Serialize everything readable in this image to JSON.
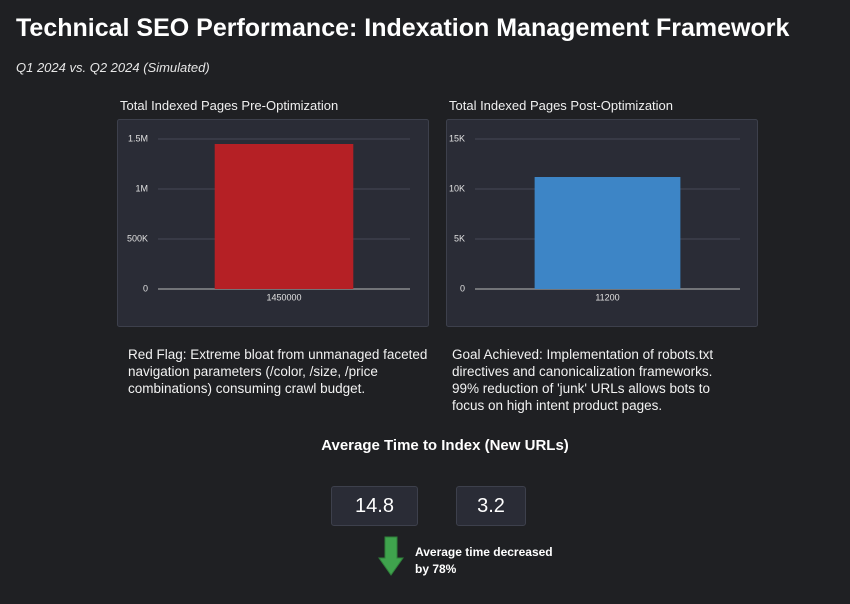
{
  "header": {
    "title": "Technical SEO Performance: Indexation Management Framework",
    "subtitle": "Q1 2024 vs. Q2 2024 (Simulated)"
  },
  "chart_data": [
    {
      "type": "bar",
      "title": "Total Indexed Pages Pre-Optimization",
      "categories": [
        "1450000"
      ],
      "values": [
        1450000
      ],
      "color": "#b52025",
      "ylim": [
        0,
        1500000
      ],
      "yticks": [
        0,
        {
          "value": 500000,
          "label": "500K"
        },
        {
          "value": 1000000,
          "label": "1M"
        },
        {
          "value": 1500000,
          "label": "1.5M"
        }
      ],
      "grid": true
    },
    {
      "type": "bar",
      "title": "Total Indexed Pages Post-Optimization",
      "categories": [
        "11200"
      ],
      "values": [
        11200
      ],
      "color": "#3d85c6",
      "ylim": [
        0,
        15000
      ],
      "yticks": [
        0,
        {
          "value": 5000,
          "label": "5K"
        },
        {
          "value": 10000,
          "label": "10K"
        },
        {
          "value": 15000,
          "label": "15K"
        }
      ],
      "grid": true
    }
  ],
  "notes": [
    "Red Flag: Extreme bloat from unmanaged faceted navigation parameters (/color, /size, /price combinations) consuming crawl budget.",
    "Goal Achieved: Implementation of robots.txt directives and canonicalization frameworks. 99% reduction of 'junk' URLs allows bots to focus on high intent product pages."
  ],
  "kpi": {
    "title": "Average Time to Index (New URLs)",
    "before": "14.8",
    "after": "3.2",
    "change_note": "Average time decreased by 78%"
  }
}
